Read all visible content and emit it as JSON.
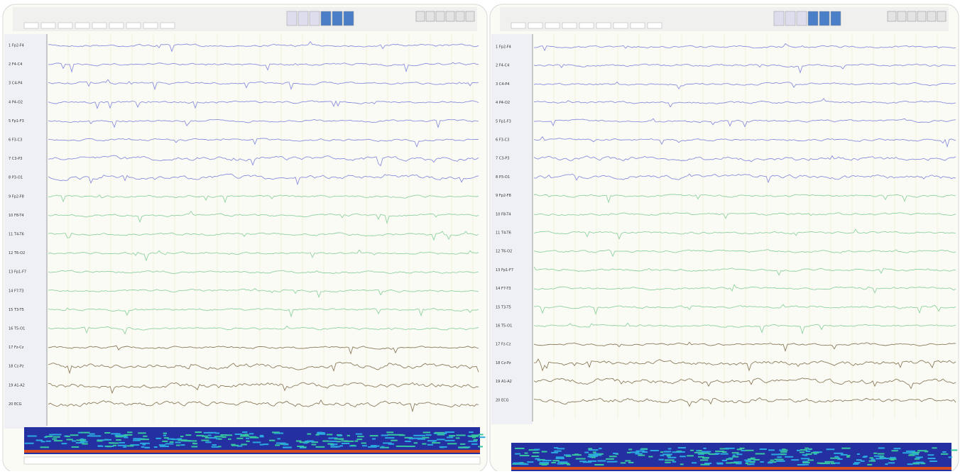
{
  "channels": [
    "1 Fp2-F4",
    "2 F4-C4",
    "3 C4-P4",
    "4 P4-O2",
    "5 Fp1-F3",
    "6 F3-C3",
    "7 C3-P3",
    "8 P3-O1",
    "9 Fp2-F8",
    "10 F8-T4",
    "11 T4-T6",
    "12 T6-O2",
    "13 Fp1-F7",
    "14 F7-T3",
    "15 T3-T5",
    "16 T5-O1",
    "17 Fz-Cz",
    "18 Cz-Pz",
    "19 A1-A2",
    "20 ECG"
  ]
}
